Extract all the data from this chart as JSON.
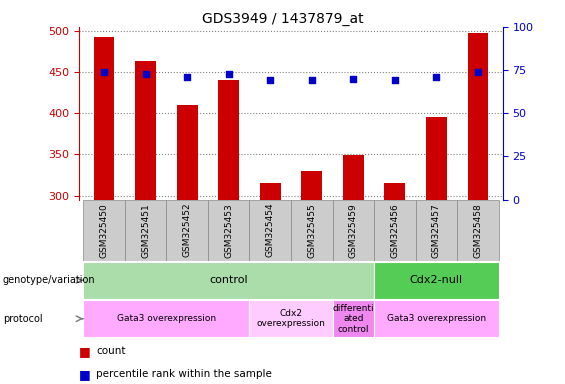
{
  "title": "GDS3949 / 1437879_at",
  "samples": [
    "GSM325450",
    "GSM325451",
    "GSM325452",
    "GSM325453",
    "GSM325454",
    "GSM325455",
    "GSM325459",
    "GSM325456",
    "GSM325457",
    "GSM325458"
  ],
  "counts": [
    493,
    463,
    410,
    441,
    315,
    330,
    349,
    315,
    395,
    498
  ],
  "percentiles": [
    74,
    73,
    71,
    73,
    69,
    69,
    70,
    69,
    71,
    74
  ],
  "ylim_left": [
    295,
    505
  ],
  "ylim_right": [
    0,
    100
  ],
  "yticks_left": [
    300,
    350,
    400,
    450,
    500
  ],
  "yticks_right": [
    0,
    25,
    50,
    75,
    100
  ],
  "bar_color": "#cc0000",
  "dot_color": "#0000cc",
  "grid_color": "#000000",
  "bar_width": 0.5,
  "genotype_groups": [
    {
      "label": "control",
      "start": 0,
      "end": 6,
      "color": "#aaddaa"
    },
    {
      "label": "Cdx2-null",
      "start": 7,
      "end": 9,
      "color": "#55cc55"
    }
  ],
  "protocol_groups": [
    {
      "label": "Gata3 overexpression",
      "start": 0,
      "end": 3,
      "color": "#ffaaff"
    },
    {
      "label": "Cdx2\noverexpression",
      "start": 4,
      "end": 5,
      "color": "#ffccff"
    },
    {
      "label": "differenti\nated\ncontrol",
      "start": 6,
      "end": 6,
      "color": "#ee88ee"
    },
    {
      "label": "Gata3 overexpression",
      "start": 7,
      "end": 9,
      "color": "#ffaaff"
    }
  ],
  "left_label_color": "#cc0000",
  "right_label_color": "#0000cc",
  "tick_box_color": "#cccccc",
  "tick_box_edge_color": "#888888"
}
